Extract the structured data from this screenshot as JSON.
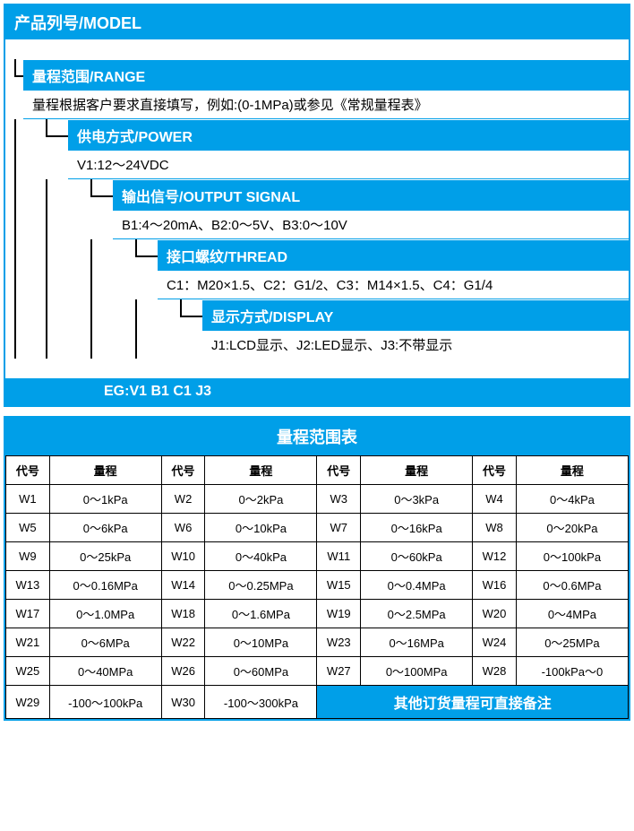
{
  "colors": {
    "primary": "#009fe8",
    "border": "#000000",
    "text_on_primary": "#ffffff",
    "text": "#000000",
    "background": "#ffffff"
  },
  "typography": {
    "header_fontsize": 18,
    "subheader_fontsize": 16,
    "body_fontsize": 15,
    "table_fontsize": 13,
    "header_weight": "bold"
  },
  "top": {
    "title": "产品列号/MODEL"
  },
  "branches": [
    {
      "title": "量程范围/RANGE",
      "text": "量程根据客户要求直接填写，例如:(0-1MPa)或参见《常规量程表》",
      "indent": 1
    },
    {
      "title": "供电方式/POWER",
      "text": "V1:12～24VDC",
      "indent": 2
    },
    {
      "title": "输出信号/OUTPUT SIGNAL",
      "text": "B1:4～20mA、B2:0～5V、B3:0～10V",
      "indent": 3
    },
    {
      "title": "接口螺纹/THREAD",
      "text": "C1：M20×1.5、C2：G1/2、C3：M14×1.5、C4：G1/4",
      "indent": 4
    },
    {
      "title": "显示方式/DISPLAY",
      "text": "J1:LCD显示、J2:LED显示、J3:不带显示",
      "indent": 5
    }
  ],
  "example": "EG:V1 B1 C1 J3",
  "table": {
    "title": "量程范围表",
    "col_header_code": "代号",
    "col_header_val": "量程",
    "pairs_per_row": 4,
    "rows": [
      [
        [
          "W1",
          "0～1kPa"
        ],
        [
          "W2",
          "0～2kPa"
        ],
        [
          "W3",
          "0～3kPa"
        ],
        [
          "W4",
          "0～4kPa"
        ]
      ],
      [
        [
          "W5",
          "0～6kPa"
        ],
        [
          "W6",
          "0～10kPa"
        ],
        [
          "W7",
          "0～16kPa"
        ],
        [
          "W8",
          "0～20kPa"
        ]
      ],
      [
        [
          "W9",
          "0～25kPa"
        ],
        [
          "W10",
          "0～40kPa"
        ],
        [
          "W11",
          "0～60kPa"
        ],
        [
          "W12",
          "0～100kPa"
        ]
      ],
      [
        [
          "W13",
          "0～0.16MPa"
        ],
        [
          "W14",
          "0～0.25MPa"
        ],
        [
          "W15",
          "0～0.4MPa"
        ],
        [
          "W16",
          "0～0.6MPa"
        ]
      ],
      [
        [
          "W17",
          "0～1.0MPa"
        ],
        [
          "W18",
          "0～1.6MPa"
        ],
        [
          "W19",
          "0～2.5MPa"
        ],
        [
          "W20",
          "0～4MPa"
        ]
      ],
      [
        [
          "W21",
          "0～6MPa"
        ],
        [
          "W22",
          "0～10MPa"
        ],
        [
          "W23",
          "0～16MPa"
        ],
        [
          "W24",
          "0～25MPa"
        ]
      ],
      [
        [
          "W25",
          "0～40MPa"
        ],
        [
          "W26",
          "0～60MPa"
        ],
        [
          "W27",
          "0～100MPa"
        ],
        [
          "W28",
          "-100kPa～0"
        ]
      ]
    ],
    "last_row": [
      [
        "W29",
        "-100～100kPa"
      ],
      [
        "W30",
        "-100～300kPa"
      ]
    ],
    "note": "其他订货量程可直接备注"
  }
}
